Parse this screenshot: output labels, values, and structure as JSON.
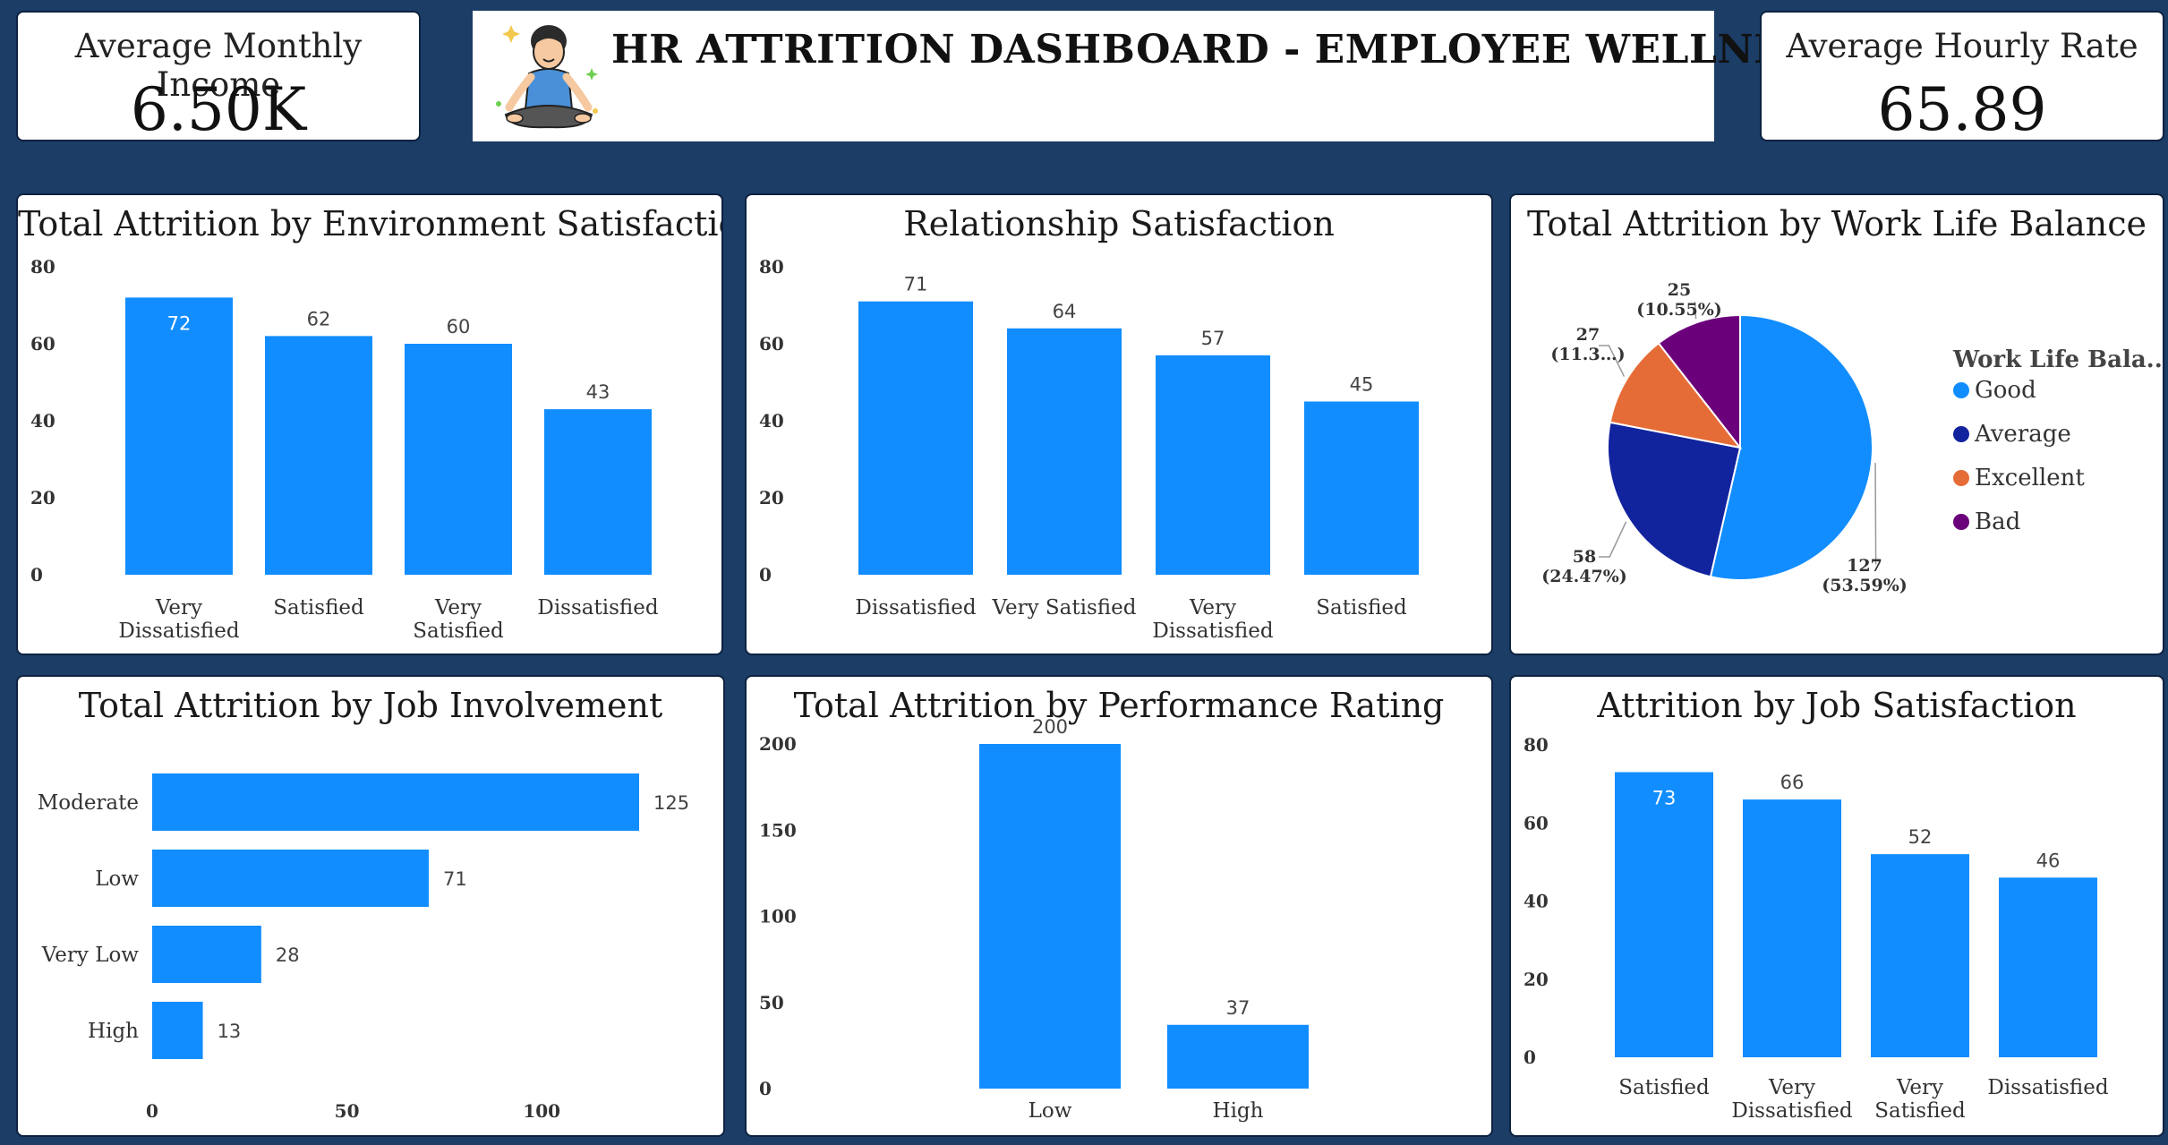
{
  "kpis": {
    "income": {
      "title": "Average Monthly Income",
      "value": "6.50K"
    },
    "hourly": {
      "title": "Average Hourly Rate",
      "value": "65.89"
    }
  },
  "banner": {
    "title": "HR ATTRITION DASHBOARD - EMPLOYEE WELLNESS",
    "icon": "meditating-person-icon"
  },
  "colors": {
    "bar": "#118dff",
    "background": "#1b3d66",
    "good": "#118dff",
    "average": "#12239e",
    "excellent": "#e66c37",
    "bad": "#6b007b"
  },
  "chart_data": [
    {
      "id": "env",
      "type": "bar",
      "title": "Total Attrition by Environment Satisfaction",
      "categories": [
        "Very\nDissatisfied",
        "Satisfied",
        "Very\nSatisfied",
        "Dissatisfied"
      ],
      "values": [
        72,
        62,
        60,
        43
      ],
      "ylim": [
        0,
        80
      ],
      "yticks": [
        0,
        20,
        40,
        60,
        80
      ],
      "label_inside_first": true
    },
    {
      "id": "rel",
      "type": "bar",
      "title": "Relationship Satisfaction",
      "categories": [
        "Dissatisfied",
        "Very Satisfied",
        "Very\nDissatisfied",
        "Satisfied"
      ],
      "values": [
        71,
        64,
        57,
        45
      ],
      "ylim": [
        0,
        80
      ],
      "yticks": [
        0,
        20,
        40,
        60,
        80
      ],
      "label_inside_first": false
    },
    {
      "id": "wlb",
      "type": "pie",
      "title": "Total Attrition by Work Life Balance",
      "legend_title": "Work Life Bala...",
      "slices": [
        {
          "name": "Good",
          "value": 127,
          "label": "127",
          "pct": "(53.59%)"
        },
        {
          "name": "Average",
          "value": 58,
          "label": "58",
          "pct": "(24.47%)"
        },
        {
          "name": "Excellent",
          "value": 27,
          "label": "27",
          "pct": "(11.3…)"
        },
        {
          "name": "Bad",
          "value": 25,
          "label": "25",
          "pct": "(10.55%)"
        }
      ]
    },
    {
      "id": "job",
      "type": "hbar",
      "title": "Total Attrition by Job Involvement",
      "categories": [
        "Moderate",
        "Low",
        "Very Low",
        "High"
      ],
      "values": [
        125,
        71,
        28,
        13
      ],
      "xlim": [
        0,
        125
      ],
      "xticks": [
        0,
        50,
        100
      ]
    },
    {
      "id": "perf",
      "type": "bar",
      "title": "Total Attrition by Performance Rating",
      "categories": [
        "Low",
        "High"
      ],
      "values": [
        200,
        37
      ],
      "ylim": [
        0,
        200
      ],
      "yticks": [
        0,
        50,
        100,
        150,
        200
      ]
    },
    {
      "id": "jobsat",
      "type": "bar",
      "title": "Attrition by Job Satisfaction",
      "categories": [
        "Satisfied",
        "Very\nDissatisfied",
        "Very\nSatisfied",
        "Dissatisfied"
      ],
      "values": [
        73,
        66,
        52,
        46
      ],
      "ylim": [
        0,
        80
      ],
      "yticks": [
        0,
        20,
        40,
        60,
        80
      ],
      "label_inside_first": true
    }
  ]
}
